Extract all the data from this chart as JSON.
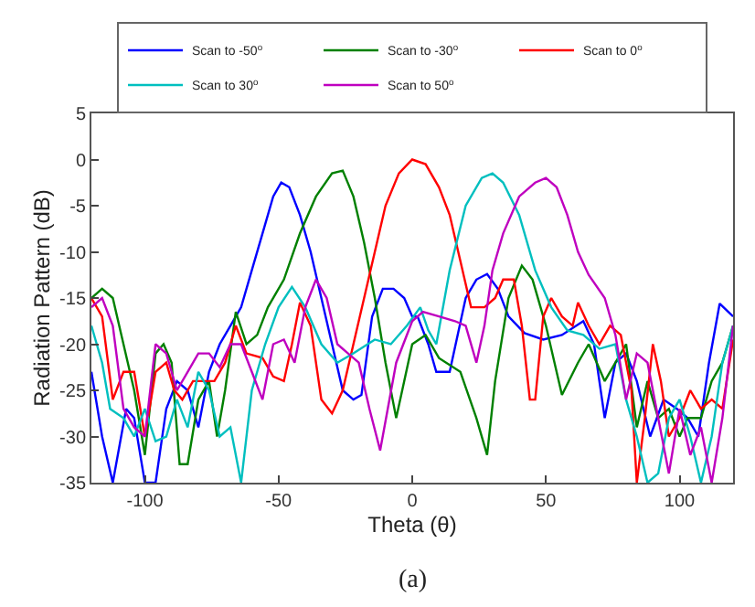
{
  "chart_data": {
    "type": "line",
    "xlabel": "Theta (θ)",
    "ylabel": "Radiation Pattern (dB)",
    "annotations": [
      "(a)"
    ],
    "xlim": [
      -120,
      120
    ],
    "xticks": [
      -100,
      -50,
      0,
      50,
      100
    ],
    "ylim": [
      -35,
      5
    ],
    "yticks": [
      -35,
      -30,
      -25,
      -20,
      -15,
      -10,
      -5,
      0,
      5
    ],
    "legend": "top",
    "marker": "none",
    "line_style": "solid",
    "series": [
      {
        "name": "Scan to -50$^{o}$",
        "color": "#0000ff",
        "x": [
          -120,
          -116,
          -112,
          -107,
          -104,
          -100,
          -96,
          -92,
          -88,
          -84,
          -80,
          -76,
          -72,
          -68,
          -64,
          -60,
          -56,
          -52,
          -49,
          -46,
          -42,
          -38,
          -34,
          -30,
          -26,
          -22,
          -19,
          -15,
          -11,
          -7,
          -3,
          0,
          2,
          6,
          9,
          14,
          20,
          24,
          28,
          32,
          36,
          42,
          49,
          56,
          64,
          68,
          72,
          76,
          80,
          84,
          89,
          94,
          99,
          103,
          107,
          111,
          115,
          120
        ],
        "values": [
          -23,
          -30,
          -35,
          -27,
          -28,
          -35,
          -35,
          -27,
          -24,
          -25,
          -29,
          -23,
          -20,
          -18,
          -16,
          -12,
          -8,
          -4,
          -2.5,
          -3,
          -6,
          -10,
          -15,
          -20,
          -25,
          -26,
          -25.5,
          -17,
          -14,
          -14,
          -15,
          -17,
          -17,
          -20,
          -23,
          -23,
          -15,
          -13,
          -12.4,
          -14,
          -17,
          -18.8,
          -19.5,
          -19,
          -17.5,
          -20,
          -28,
          -22,
          -21,
          -24,
          -30,
          -26,
          -27,
          -28,
          -30,
          -22,
          -15.6,
          -17
        ]
      },
      {
        "name": "Scan to -30$^{o}$",
        "color": "#008000",
        "x": [
          -120,
          -116,
          -112,
          -108,
          -104,
          -100,
          -96,
          -93,
          -90,
          -87,
          -84,
          -80,
          -76,
          -73,
          -70,
          -66,
          -62,
          -58,
          -54,
          -48,
          -42,
          -36,
          -30,
          -26,
          -22,
          -18,
          -14,
          -10,
          -6,
          -3,
          0,
          5,
          10,
          18,
          24,
          28,
          31,
          36,
          41,
          45,
          50,
          56,
          62,
          66,
          72,
          76,
          80,
          84,
          88,
          92,
          96,
          100,
          103,
          108,
          112,
          116,
          120
        ],
        "values": [
          -15,
          -14,
          -15,
          -20,
          -25,
          -32,
          -21,
          -20,
          -22,
          -33,
          -33,
          -26,
          -24,
          -30,
          -25,
          -16.5,
          -20,
          -19,
          -16,
          -13,
          -8,
          -4,
          -1.5,
          -1.2,
          -4,
          -9,
          -15,
          -22,
          -28,
          -24,
          -20,
          -19,
          -21.5,
          -23,
          -28,
          -32,
          -24,
          -15,
          -11.5,
          -13,
          -18,
          -25.5,
          -22,
          -20,
          -24,
          -22,
          -20,
          -29,
          -24,
          -28,
          -27,
          -30,
          -28,
          -28,
          -24,
          -22,
          -18
        ]
      },
      {
        "name": "Scan to 0$^{o}$",
        "color": "#ff0000",
        "x": [
          -120,
          -116,
          -112,
          -108,
          -104,
          -100,
          -96,
          -92,
          -89,
          -86,
          -82,
          -78,
          -74,
          -70,
          -66,
          -62,
          -56,
          -52,
          -48,
          -45,
          -42,
          -38,
          -34,
          -30,
          -26,
          -22,
          -18,
          -14,
          -10,
          -5,
          0,
          5,
          10,
          14,
          18,
          22,
          27,
          31,
          34,
          38,
          41,
          44,
          46,
          49,
          52,
          56,
          60,
          62,
          66,
          70,
          74,
          78,
          82,
          84,
          87,
          90,
          93,
          96,
          100,
          104,
          108,
          112,
          116,
          120
        ],
        "values": [
          -15,
          -17,
          -26,
          -23,
          -23,
          -30,
          -23,
          -22,
          -25,
          -26,
          -24,
          -24,
          -24,
          -22,
          -18,
          -21,
          -21.5,
          -23.5,
          -24,
          -20,
          -15.5,
          -18,
          -26,
          -27.5,
          -25,
          -20,
          -15,
          -10,
          -5,
          -1.5,
          0,
          -0.5,
          -3,
          -6,
          -11,
          -16,
          -16,
          -15,
          -13,
          -13,
          -18,
          -26,
          -26,
          -17,
          -15,
          -17,
          -18,
          -15.5,
          -18,
          -20,
          -18,
          -19,
          -25,
          -35,
          -28,
          -20,
          -24,
          -30,
          -28,
          -25,
          -27,
          -26,
          -27,
          -19.5
        ]
      },
      {
        "name": "Scan to 30$^{o}$",
        "color": "#00bfbf",
        "x": [
          -120,
          -116,
          -113,
          -108,
          -104,
          -100,
          -96,
          -92,
          -88,
          -84,
          -80,
          -76,
          -72,
          -68,
          -64,
          -60,
          -55,
          -50,
          -45,
          -40,
          -34,
          -28,
          -22,
          -14,
          -8,
          -2,
          3,
          6,
          9,
          14,
          20,
          26,
          30,
          34,
          40,
          46,
          52,
          58,
          64,
          70,
          76,
          80,
          84,
          88,
          92,
          96,
          100,
          104,
          108,
          112,
          116,
          120
        ],
        "values": [
          -18,
          -22,
          -27,
          -28,
          -30,
          -27,
          -30.5,
          -30,
          -26,
          -29,
          -23,
          -25,
          -30,
          -29,
          -35,
          -25,
          -20,
          -16,
          -13.8,
          -16,
          -20,
          -22,
          -21,
          -19.5,
          -20,
          -18,
          -16,
          -18.5,
          -20,
          -12,
          -5,
          -2,
          -1.5,
          -2.5,
          -6,
          -12,
          -16,
          -18.5,
          -19,
          -20.5,
          -20,
          -26,
          -30,
          -35,
          -34,
          -28,
          -26,
          -30,
          -35,
          -30,
          -22,
          -18
        ]
      },
      {
        "name": "Scan to 50$^{o}$",
        "color": "#bf00bf",
        "x": [
          -120,
          -116,
          -112,
          -108,
          -104,
          -100,
          -96,
          -92,
          -88,
          -84,
          -80,
          -76,
          -72,
          -68,
          -64,
          -60,
          -56,
          -52,
          -48,
          -44,
          -40,
          -36,
          -32,
          -28,
          -24,
          -20,
          -16,
          -12,
          -6,
          0,
          4,
          10,
          16,
          20,
          24,
          27,
          30,
          34,
          40,
          46,
          50,
          54,
          58,
          62,
          66,
          72,
          76,
          80,
          84,
          88,
          92,
          96,
          100,
          104,
          108,
          112,
          116,
          120
        ],
        "values": [
          -16,
          -15,
          -18,
          -27,
          -29,
          -30,
          -20,
          -21,
          -25,
          -23,
          -21,
          -21,
          -22.5,
          -20,
          -20,
          -23,
          -26,
          -20,
          -19.5,
          -22,
          -16,
          -13,
          -15,
          -20,
          -21,
          -22,
          -27,
          -31.5,
          -22,
          -17.5,
          -16.5,
          -17,
          -17.5,
          -18,
          -22,
          -18,
          -12,
          -8,
          -4,
          -2.5,
          -2,
          -3,
          -6,
          -10,
          -12.5,
          -15,
          -19,
          -26,
          -21,
          -22,
          -28,
          -34,
          -27,
          -32,
          -29,
          -35,
          -28,
          -18
        ]
      }
    ]
  }
}
